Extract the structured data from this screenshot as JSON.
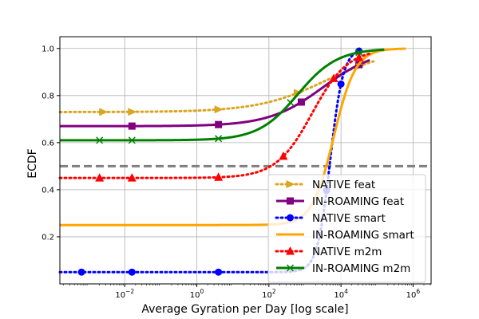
{
  "chart_data": {
    "type": "line",
    "title": "",
    "xlabel": "Average Gyration per Day [log scale]",
    "ylabel": "ECDF",
    "xscale": "log",
    "xlim_log10": [
      -3.8,
      6.5
    ],
    "ylim": [
      0.0,
      1.05
    ],
    "grid": true,
    "legend_position": "lower-right",
    "x_ticks": [
      {
        "log10": -2,
        "base": "10",
        "exp": "−2"
      },
      {
        "log10": 0,
        "base": "10",
        "exp": "0"
      },
      {
        "log10": 2,
        "base": "10",
        "exp": "2"
      },
      {
        "log10": 4,
        "base": "10",
        "exp": "4"
      },
      {
        "log10": 6,
        "base": "10",
        "exp": "6"
      }
    ],
    "y_ticks": [
      "0.2",
      "0.4",
      "0.6",
      "0.8",
      "1.0"
    ],
    "y_tick_values": [
      0.2,
      0.4,
      0.6,
      0.8,
      1.0
    ],
    "reference_line": {
      "y": 0.5,
      "color": "#808080",
      "style": "dashed"
    },
    "series": [
      {
        "name": "NATIVE feat",
        "color": "#DAA520",
        "linestyle": "dotted",
        "marker": "triangle-right",
        "base": 0.73,
        "mid_log10": 3.6,
        "width": 0.95,
        "x_end_log10": 4.9,
        "marker_x_log10": [
          -2.6,
          -1.8,
          0.6,
          2.8,
          4.5
        ]
      },
      {
        "name": "IN-ROAMING feat",
        "color": "#800080",
        "linestyle": "solid",
        "marker": "square",
        "base": 0.67,
        "mid_log10": 3.5,
        "width": 0.75,
        "x_end_log10": 4.8,
        "marker_x_log10": [
          -1.8,
          0.6,
          2.9,
          4.5
        ]
      },
      {
        "name": "NATIVE smart",
        "color": "#0000FF",
        "linestyle": "dotted",
        "marker": "circle",
        "base": 0.05,
        "mid_log10": 3.7,
        "width": 0.18,
        "x_end_log10": 4.6,
        "marker_x_log10": [
          -3.2,
          -1.8,
          0.6,
          3.6,
          4.0,
          4.5
        ]
      },
      {
        "name": "IN-ROAMING smart",
        "color": "#FFA500",
        "linestyle": "solid",
        "marker": "thin-line",
        "base": 0.25,
        "mid_log10": 3.8,
        "width": 0.3,
        "x_end_log10": 5.8,
        "marker_x_log10": [
          -2.6,
          -1.8,
          0.6,
          4.5
        ]
      },
      {
        "name": "NATIVE m2m",
        "color": "#FF0000",
        "linestyle": "dotted",
        "marker": "triangle-up",
        "base": 0.45,
        "mid_log10": 3.2,
        "width": 0.5,
        "x_end_log10": 4.8,
        "marker_x_log10": [
          -2.7,
          -1.8,
          0.6,
          2.4,
          3.8,
          4.5
        ]
      },
      {
        "name": "IN-ROAMING m2m",
        "color": "#008000",
        "linestyle": "solid",
        "marker": "x",
        "base": 0.61,
        "mid_log10": 2.8,
        "width": 0.55,
        "x_end_log10": 5.2,
        "marker_x_log10": [
          -2.7,
          -1.8,
          0.6,
          2.6,
          4.5
        ]
      }
    ]
  }
}
